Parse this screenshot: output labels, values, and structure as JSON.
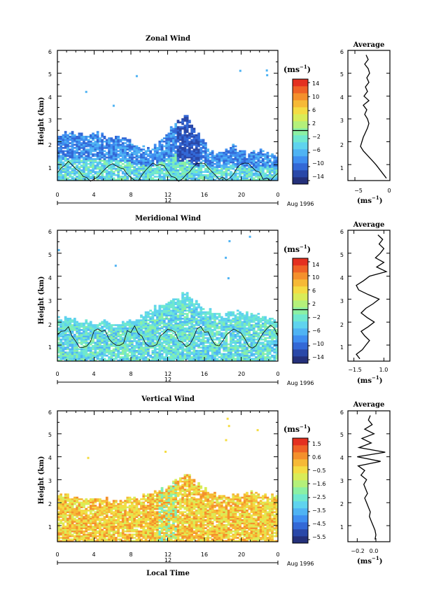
{
  "colormap": [
    "#24307a",
    "#2a48a8",
    "#3368d6",
    "#3f8ef0",
    "#4fb3f3",
    "#5fd3ee",
    "#6fe8cf",
    "#8bf0a4",
    "#b4f07a",
    "#d9ec58",
    "#f4dc43",
    "#f6b936",
    "#f4902c",
    "#ef6226",
    "#e43020"
  ],
  "panels": [
    {
      "title": "Zonal Wind",
      "ylabel": "Height (km)",
      "yticks": [
        "1",
        "2",
        "3",
        "4",
        "5",
        "6"
      ],
      "xticks": [
        "0",
        "4",
        "8",
        "12",
        "16",
        "20",
        "0"
      ],
      "date_tick": "12",
      "date_label": "Aug 1996",
      "unit": "(ms",
      "unit_exp": "−1",
      "unit_close": ")",
      "cbar_ticks": [
        "14",
        "10",
        "6",
        "2",
        "−2",
        "−6",
        "−10",
        "−14"
      ],
      "avg_title": "Average",
      "avg_xticks": [
        "−5",
        "0"
      ],
      "avg_unit": "(ms",
      "avg_unit_exp": "−1",
      "avg_unit_close": ")"
    },
    {
      "title": "Meridional Wind",
      "ylabel": "Height (km)",
      "yticks": [
        "1",
        "2",
        "3",
        "4",
        "5",
        "6"
      ],
      "xticks": [
        "0",
        "4",
        "8",
        "12",
        "16",
        "20",
        "0"
      ],
      "date_tick": "12",
      "date_label": "Aug 1996",
      "unit": "(ms",
      "unit_exp": "−1",
      "unit_close": ")",
      "cbar_ticks": [
        "14",
        "10",
        "6",
        "2",
        "−2",
        "−6",
        "−10",
        "−14"
      ],
      "avg_title": "Average",
      "avg_xticks": [
        "−1.5",
        "1.0"
      ],
      "avg_unit": "(ms",
      "avg_unit_exp": "−1",
      "avg_unit_close": ")"
    },
    {
      "title": "Vertical Wind",
      "ylabel": "Height (km)",
      "yticks": [
        "1",
        "2",
        "3",
        "4",
        "5",
        "6"
      ],
      "xticks": [
        "0",
        "4",
        "8",
        "12",
        "16",
        "20",
        "0"
      ],
      "date_tick": "12",
      "date_label": "Aug 1996",
      "unit": "(ms",
      "unit_exp": "−1",
      "unit_close": ")",
      "cbar_ticks": [
        "1.5",
        "0.6",
        "−0.5",
        "−1.6",
        "−2.5",
        "−3.5",
        "−4.5",
        "−5.5"
      ],
      "avg_title": "Average",
      "avg_xticks": [
        "−0.2",
        "0.0"
      ],
      "avg_unit": "(ms",
      "avg_unit_exp": "−1",
      "avg_unit_close": ")",
      "xlabel": "Local Time"
    }
  ],
  "chart_data": [
    {
      "type": "heatmap",
      "title": "Zonal Wind",
      "xlabel": "",
      "ylabel": "Height (km)",
      "x_range_hours": [
        0,
        24
      ],
      "ylim": [
        0.3,
        6
      ],
      "zlim": [
        -16,
        16
      ],
      "colorbar_ticks": [
        14,
        10,
        6,
        2,
        -2,
        -6,
        -10,
        -14
      ],
      "top_envelope_km": [
        [
          0,
          2.4
        ],
        [
          1,
          2.4
        ],
        [
          2,
          2.3
        ],
        [
          3,
          2.3
        ],
        [
          4,
          2.3
        ],
        [
          5,
          2.3
        ],
        [
          6,
          2.2
        ],
        [
          7,
          2.1
        ],
        [
          8,
          2.0
        ],
        [
          9,
          1.8
        ],
        [
          10,
          1.6
        ],
        [
          11,
          1.9
        ],
        [
          12,
          2.4
        ],
        [
          13,
          2.8
        ],
        [
          14,
          3.3
        ],
        [
          15,
          2.5
        ],
        [
          16,
          1.9
        ],
        [
          17,
          1.5
        ],
        [
          18,
          1.6
        ],
        [
          19,
          1.8
        ],
        [
          20,
          1.5
        ],
        [
          21,
          1.5
        ],
        [
          22,
          1.6
        ],
        [
          23,
          1.5
        ],
        [
          24,
          1.4
        ]
      ],
      "profile": {
        "title": "Average",
        "xlim": [
          -6,
          0
        ],
        "xticks": [
          -5,
          0
        ],
        "x_m_s": [
          -0.5,
          -1.0,
          -1.5,
          -2.0,
          -2.6,
          -3.2,
          -3.8,
          -4.2,
          -4.0,
          -3.8,
          -3.5,
          -3.2,
          -3.0,
          -3.2,
          -3.6,
          -3.3,
          -3.8,
          -3.0,
          -3.7,
          -3.2,
          -3.5,
          -3.0,
          -3.3,
          -2.9,
          -3.1,
          -3.6,
          -3.1,
          -3.4
        ],
        "height_km": [
          0.4,
          0.6,
          0.8,
          1.0,
          1.2,
          1.4,
          1.6,
          1.8,
          2.0,
          2.2,
          2.4,
          2.6,
          2.8,
          3.0,
          3.2,
          3.4,
          3.6,
          3.8,
          4.0,
          4.2,
          4.4,
          4.6,
          4.8,
          5.0,
          5.2,
          5.4,
          5.6,
          5.8
        ]
      }
    },
    {
      "type": "heatmap",
      "title": "Meridional Wind",
      "xlabel": "",
      "ylabel": "Height (km)",
      "x_range_hours": [
        0,
        24
      ],
      "ylim": [
        0.3,
        6
      ],
      "zlim": [
        -16,
        16
      ],
      "colorbar_ticks": [
        14,
        10,
        6,
        2,
        -2,
        -6,
        -10,
        -14
      ],
      "top_envelope_km": [
        [
          0,
          2.2
        ],
        [
          1,
          2.1
        ],
        [
          2,
          2.1
        ],
        [
          3,
          2.0
        ],
        [
          4,
          2.0
        ],
        [
          5,
          2.0
        ],
        [
          6,
          1.9
        ],
        [
          7,
          2.0
        ],
        [
          8,
          2.0
        ],
        [
          9,
          2.2
        ],
        [
          10,
          2.4
        ],
        [
          11,
          2.7
        ],
        [
          12,
          2.8
        ],
        [
          13,
          3.0
        ],
        [
          14,
          3.2
        ],
        [
          15,
          2.9
        ],
        [
          16,
          2.6
        ],
        [
          17,
          2.4
        ],
        [
          18,
          2.3
        ],
        [
          19,
          2.5
        ],
        [
          20,
          2.4
        ],
        [
          21,
          2.3
        ],
        [
          22,
          2.3
        ],
        [
          23,
          2.1
        ],
        [
          24,
          2.0
        ]
      ],
      "profile": {
        "title": "Average",
        "xlim": [
          -2.0,
          1.5
        ],
        "xticks": [
          -1.5,
          1.0
        ],
        "x_m_s": [
          -1.0,
          -1.3,
          -0.8,
          -0.5,
          -0.2,
          -0.6,
          -0.9,
          -0.3,
          0.2,
          -0.4,
          -0.9,
          -0.5,
          0.1,
          0.6,
          -0.3,
          -1.1,
          -1.3,
          -0.7,
          -0.2,
          1.2,
          0.4,
          1.0,
          0.3,
          0.7,
          1.0,
          0.6,
          0.9,
          0.5
        ],
        "height_km": [
          0.4,
          0.6,
          0.8,
          1.0,
          1.2,
          1.4,
          1.6,
          1.8,
          2.0,
          2.2,
          2.4,
          2.6,
          2.8,
          3.0,
          3.2,
          3.4,
          3.6,
          3.8,
          4.0,
          4.2,
          4.4,
          4.6,
          4.8,
          5.0,
          5.2,
          5.4,
          5.6,
          5.8
        ]
      }
    },
    {
      "type": "heatmap",
      "title": "Vertical Wind",
      "xlabel": "Local Time",
      "ylabel": "Height (km)",
      "x_range_hours": [
        0,
        24
      ],
      "ylim": [
        0.3,
        6
      ],
      "zlim": [
        -6.0,
        2.0
      ],
      "colorbar_ticks": [
        1.5,
        0.6,
        -0.5,
        -1.6,
        -2.5,
        -3.5,
        -4.5,
        -5.5
      ],
      "top_envelope_km": [
        [
          0,
          2.3
        ],
        [
          1,
          2.3
        ],
        [
          2,
          2.3
        ],
        [
          3,
          2.2
        ],
        [
          4,
          2.2
        ],
        [
          5,
          2.2
        ],
        [
          6,
          2.1
        ],
        [
          7,
          2.1
        ],
        [
          8,
          2.2
        ],
        [
          9,
          2.2
        ],
        [
          10,
          2.3
        ],
        [
          11,
          2.5
        ],
        [
          12,
          2.7
        ],
        [
          13,
          2.9
        ],
        [
          14,
          3.3
        ],
        [
          15,
          2.9
        ],
        [
          16,
          2.6
        ],
        [
          17,
          2.4
        ],
        [
          18,
          2.3
        ],
        [
          19,
          2.3
        ],
        [
          20,
          2.3
        ],
        [
          21,
          2.4
        ],
        [
          22,
          2.4
        ],
        [
          23,
          2.3
        ],
        [
          24,
          2.2
        ]
      ],
      "profile": {
        "title": "Average",
        "xlim": [
          -0.3,
          0.15
        ],
        "xticks": [
          -0.2,
          0.0
        ],
        "x_m_s": [
          -0.01,
          0.0,
          -0.01,
          -0.03,
          -0.05,
          -0.07,
          -0.06,
          -0.08,
          -0.1,
          -0.12,
          -0.09,
          -0.11,
          -0.13,
          -0.1,
          -0.16,
          -0.12,
          -0.19,
          0.05,
          -0.2,
          0.1,
          -0.18,
          -0.05,
          -0.15,
          -0.02,
          -0.12,
          -0.04,
          -0.08,
          -0.06
        ],
        "height_km": [
          0.4,
          0.6,
          0.8,
          1.0,
          1.2,
          1.4,
          1.6,
          1.8,
          2.0,
          2.2,
          2.4,
          2.6,
          2.8,
          3.0,
          3.2,
          3.4,
          3.6,
          3.8,
          4.0,
          4.2,
          4.4,
          4.6,
          4.8,
          5.0,
          5.2,
          5.4,
          5.6,
          5.8
        ]
      }
    }
  ]
}
